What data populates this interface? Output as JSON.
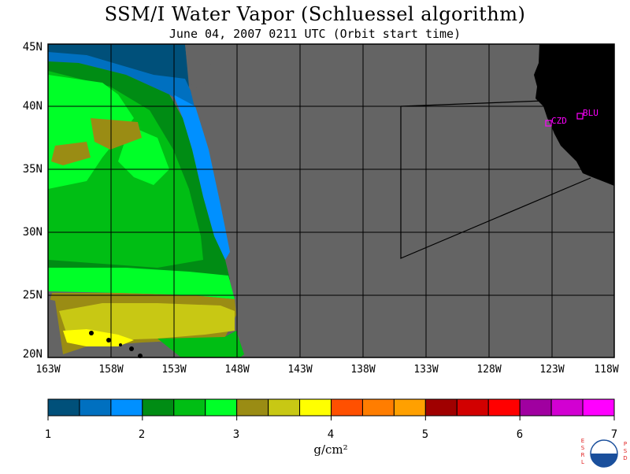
{
  "header": {
    "title": "SSM/I Water Vapor (Schluessel algorithm)",
    "subtitle": "June 04, 2007  0211 UTC  (Orbit start time)"
  },
  "map": {
    "lat_labels": [
      "45N",
      "40N",
      "35N",
      "30N",
      "25N",
      "20N"
    ],
    "lon_labels": [
      "163W",
      "158W",
      "153W",
      "148W",
      "143W",
      "138W",
      "133W",
      "128W",
      "123W",
      "118W"
    ],
    "lat_range": [
      20,
      45
    ],
    "lon_range": [
      -163,
      -118
    ],
    "land_color": "#000000",
    "no_data_color": "#646464",
    "stations": [
      {
        "label": "CZD"
      },
      {
        "label": "BLU"
      }
    ]
  },
  "colorbar": {
    "colors": [
      "#00507a",
      "#0070c0",
      "#0090ff",
      "#008c14",
      "#00be14",
      "#00ff28",
      "#9a8c14",
      "#c8c814",
      "#ffff00",
      "#ff5000",
      "#ff7d00",
      "#ffa000",
      "#a00000",
      "#d20000",
      "#ff0000",
      "#a000a0",
      "#d200d2",
      "#ff00ff"
    ],
    "tick_labels": [
      "1",
      "2",
      "3",
      "4",
      "5",
      "6",
      "7"
    ],
    "units": "g/cm²"
  },
  "logo": {
    "left_text": "ESRL",
    "right_text": "PSD",
    "center_text": "NOAA"
  }
}
